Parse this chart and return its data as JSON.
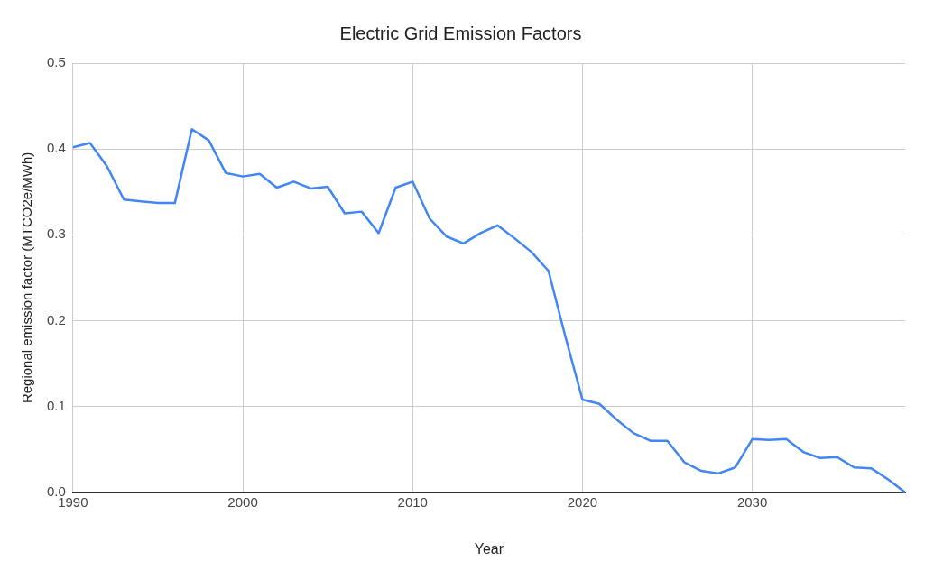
{
  "chart_data": {
    "type": "line",
    "title": "Electric Grid Emission Factors",
    "xlabel": "Year",
    "ylabel": "Regional emission factor (MTCO2e/MWh)",
    "x": [
      1990,
      1991,
      1992,
      1993,
      1994,
      1995,
      1996,
      1997,
      1998,
      1999,
      2000,
      2001,
      2002,
      2003,
      2004,
      2005,
      2006,
      2007,
      2008,
      2009,
      2010,
      2011,
      2012,
      2013,
      2014,
      2015,
      2016,
      2017,
      2018,
      2019,
      2020,
      2021,
      2022,
      2023,
      2024,
      2025,
      2026,
      2027,
      2028,
      2029,
      2030,
      2031,
      2032,
      2033,
      2034,
      2035,
      2036,
      2037,
      2038,
      2039
    ],
    "series": [
      {
        "color": "#4285f4",
        "values": [
          0.402,
          0.407,
          0.38,
          0.341,
          0.339,
          0.337,
          0.337,
          0.423,
          0.41,
          0.372,
          0.368,
          0.371,
          0.355,
          0.362,
          0.354,
          0.356,
          0.325,
          0.327,
          0.302,
          0.355,
          0.362,
          0.319,
          0.298,
          0.29,
          0.302,
          0.311,
          0.296,
          0.28,
          0.258,
          0.181,
          0.108,
          0.103,
          0.085,
          0.069,
          0.06,
          0.06,
          0.035,
          0.025,
          0.022,
          0.029,
          0.062,
          0.061,
          0.062,
          0.047,
          0.04,
          0.041,
          0.029,
          0.028,
          0.015,
          0.0
        ]
      }
    ],
    "xlim": [
      1990,
      2039
    ],
    "xticks": [
      1990,
      2000,
      2010,
      2020,
      2030
    ],
    "ylim": [
      0,
      0.5
    ],
    "yticks": [
      {
        "value": 0,
        "label": "0.0"
      },
      0.1,
      0.2,
      0.3,
      0.4,
      0.5
    ],
    "grid": true,
    "legend": false,
    "marker": "none",
    "line_style": "solid"
  }
}
